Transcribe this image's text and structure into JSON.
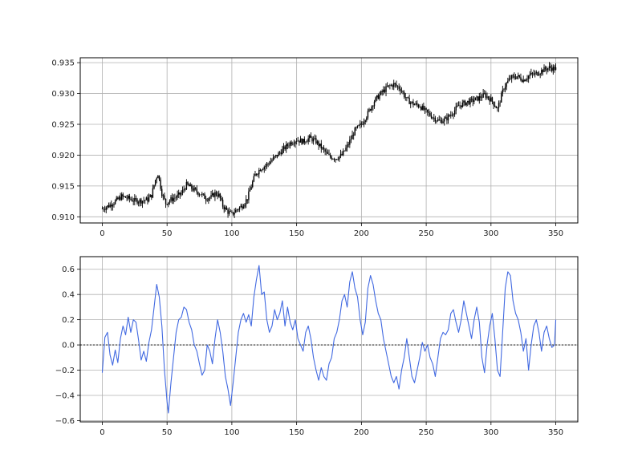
{
  "chart_data": [
    {
      "type": "candlestick",
      "title": "",
      "xlabel": "",
      "ylabel": "",
      "xlim": [
        -17,
        367
      ],
      "ylim": [
        0.909,
        0.9358
      ],
      "xticks": [
        0,
        50,
        100,
        150,
        200,
        250,
        300,
        350
      ],
      "yticks": [
        0.91,
        0.915,
        0.92,
        0.925,
        0.93,
        0.935
      ],
      "ytick_labels": [
        "0.910",
        "0.915",
        "0.920",
        "0.925",
        "0.930",
        "0.935"
      ],
      "grid": true,
      "color": "#000000",
      "close_anchors": [
        [
          0,
          0.9113
        ],
        [
          5,
          0.9118
        ],
        [
          10,
          0.9125
        ],
        [
          15,
          0.9133
        ],
        [
          20,
          0.913
        ],
        [
          25,
          0.9126
        ],
        [
          30,
          0.9126
        ],
        [
          35,
          0.9128
        ],
        [
          38,
          0.9135
        ],
        [
          41,
          0.916
        ],
        [
          43,
          0.917
        ],
        [
          46,
          0.9138
        ],
        [
          49,
          0.9122
        ],
        [
          53,
          0.9128
        ],
        [
          57,
          0.9132
        ],
        [
          61,
          0.9138
        ],
        [
          65,
          0.9152
        ],
        [
          68,
          0.9148
        ],
        [
          72,
          0.9142
        ],
        [
          76,
          0.9137
        ],
        [
          80,
          0.913
        ],
        [
          84,
          0.9132
        ],
        [
          87,
          0.9138
        ],
        [
          90,
          0.9135
        ],
        [
          93,
          0.9118
        ],
        [
          97,
          0.9108
        ],
        [
          100,
          0.9104
        ],
        [
          104,
          0.9112
        ],
        [
          108,
          0.9118
        ],
        [
          112,
          0.913
        ],
        [
          115,
          0.915
        ],
        [
          118,
          0.9168
        ],
        [
          122,
          0.9178
        ],
        [
          126,
          0.9183
        ],
        [
          130,
          0.919
        ],
        [
          135,
          0.92
        ],
        [
          140,
          0.921
        ],
        [
          145,
          0.922
        ],
        [
          150,
          0.9225
        ],
        [
          155,
          0.9222
        ],
        [
          160,
          0.9228
        ],
        [
          165,
          0.9222
        ],
        [
          170,
          0.921
        ],
        [
          175,
          0.9198
        ],
        [
          180,
          0.9195
        ],
        [
          185,
          0.92
        ],
        [
          190,
          0.9218
        ],
        [
          195,
          0.924
        ],
        [
          200,
          0.925
        ],
        [
          205,
          0.9268
        ],
        [
          210,
          0.9288
        ],
        [
          215,
          0.93
        ],
        [
          220,
          0.931
        ],
        [
          225,
          0.9315
        ],
        [
          230,
          0.9308
        ],
        [
          235,
          0.929
        ],
        [
          240,
          0.9283
        ],
        [
          245,
          0.928
        ],
        [
          250,
          0.927
        ],
        [
          255,
          0.9262
        ],
        [
          260,
          0.9255
        ],
        [
          265,
          0.9258
        ],
        [
          270,
          0.9268
        ],
        [
          275,
          0.928
        ],
        [
          280,
          0.9285
        ],
        [
          285,
          0.9288
        ],
        [
          290,
          0.9292
        ],
        [
          295,
          0.9298
        ],
        [
          300,
          0.929
        ],
        [
          305,
          0.9275
        ],
        [
          310,
          0.931
        ],
        [
          315,
          0.9325
        ],
        [
          320,
          0.9328
        ],
        [
          325,
          0.9322
        ],
        [
          330,
          0.933
        ],
        [
          335,
          0.9332
        ],
        [
          340,
          0.9338
        ],
        [
          345,
          0.9342
        ],
        [
          350,
          0.934
        ]
      ]
    },
    {
      "type": "line",
      "title": "",
      "xlabel": "",
      "ylabel": "",
      "xlim": [
        -17,
        367
      ],
      "ylim": [
        -0.61,
        0.7
      ],
      "xticks": [
        0,
        50,
        100,
        150,
        200,
        250,
        300,
        350
      ],
      "yticks": [
        -0.6,
        -0.4,
        -0.2,
        0.0,
        0.2,
        0.4,
        0.6
      ],
      "ytick_labels": [
        "−0.6",
        "−0.4",
        "−0.2",
        "0.0",
        "0.2",
        "0.4",
        "0.6"
      ],
      "grid": true,
      "color": "#4169e1",
      "reference_line": {
        "y": 0.0,
        "color": "#000000",
        "style": "dotted"
      },
      "points": [
        [
          0,
          -0.22
        ],
        [
          2,
          0.06
        ],
        [
          4,
          0.1
        ],
        [
          6,
          -0.08
        ],
        [
          8,
          -0.16
        ],
        [
          10,
          -0.04
        ],
        [
          12,
          -0.14
        ],
        [
          14,
          0.05
        ],
        [
          16,
          0.15
        ],
        [
          18,
          0.08
        ],
        [
          20,
          0.22
        ],
        [
          22,
          0.1
        ],
        [
          24,
          0.2
        ],
        [
          26,
          0.18
        ],
        [
          28,
          0.04
        ],
        [
          30,
          -0.12
        ],
        [
          32,
          -0.05
        ],
        [
          34,
          -0.13
        ],
        [
          36,
          0.02
        ],
        [
          38,
          0.12
        ],
        [
          40,
          0.3
        ],
        [
          42,
          0.48
        ],
        [
          44,
          0.38
        ],
        [
          46,
          0.15
        ],
        [
          48,
          -0.2
        ],
        [
          50,
          -0.45
        ],
        [
          51,
          -0.54
        ],
        [
          53,
          -0.3
        ],
        [
          55,
          -0.1
        ],
        [
          57,
          0.1
        ],
        [
          59,
          0.2
        ],
        [
          61,
          0.22
        ],
        [
          63,
          0.3
        ],
        [
          65,
          0.28
        ],
        [
          67,
          0.18
        ],
        [
          69,
          0.12
        ],
        [
          71,
          0.0
        ],
        [
          73,
          -0.05
        ],
        [
          75,
          -0.15
        ],
        [
          77,
          -0.24
        ],
        [
          79,
          -0.2
        ],
        [
          81,
          0.0
        ],
        [
          83,
          -0.05
        ],
        [
          85,
          -0.15
        ],
        [
          87,
          0.05
        ],
        [
          89,
          0.2
        ],
        [
          91,
          0.1
        ],
        [
          93,
          -0.05
        ],
        [
          95,
          -0.25
        ],
        [
          97,
          -0.35
        ],
        [
          99,
          -0.48
        ],
        [
          101,
          -0.3
        ],
        [
          103,
          -0.1
        ],
        [
          105,
          0.1
        ],
        [
          107,
          0.2
        ],
        [
          109,
          0.25
        ],
        [
          111,
          0.18
        ],
        [
          113,
          0.24
        ],
        [
          115,
          0.15
        ],
        [
          117,
          0.38
        ],
        [
          119,
          0.52
        ],
        [
          121,
          0.63
        ],
        [
          123,
          0.4
        ],
        [
          125,
          0.42
        ],
        [
          127,
          0.2
        ],
        [
          129,
          0.1
        ],
        [
          131,
          0.15
        ],
        [
          133,
          0.28
        ],
        [
          135,
          0.2
        ],
        [
          137,
          0.25
        ],
        [
          139,
          0.35
        ],
        [
          141,
          0.15
        ],
        [
          143,
          0.3
        ],
        [
          145,
          0.18
        ],
        [
          147,
          0.12
        ],
        [
          149,
          0.2
        ],
        [
          151,
          0.05
        ],
        [
          153,
          0.0
        ],
        [
          155,
          -0.05
        ],
        [
          157,
          0.1
        ],
        [
          159,
          0.15
        ],
        [
          161,
          0.05
        ],
        [
          163,
          -0.1
        ],
        [
          165,
          -0.2
        ],
        [
          167,
          -0.28
        ],
        [
          169,
          -0.18
        ],
        [
          171,
          -0.25
        ],
        [
          173,
          -0.28
        ],
        [
          175,
          -0.15
        ],
        [
          177,
          -0.1
        ],
        [
          179,
          0.05
        ],
        [
          181,
          0.1
        ],
        [
          183,
          0.2
        ],
        [
          185,
          0.35
        ],
        [
          187,
          0.4
        ],
        [
          189,
          0.3
        ],
        [
          191,
          0.5
        ],
        [
          193,
          0.58
        ],
        [
          195,
          0.45
        ],
        [
          197,
          0.38
        ],
        [
          199,
          0.2
        ],
        [
          201,
          0.08
        ],
        [
          203,
          0.18
        ],
        [
          205,
          0.45
        ],
        [
          207,
          0.55
        ],
        [
          209,
          0.48
        ],
        [
          211,
          0.35
        ],
        [
          213,
          0.25
        ],
        [
          215,
          0.2
        ],
        [
          217,
          0.05
        ],
        [
          219,
          -0.05
        ],
        [
          221,
          -0.15
        ],
        [
          223,
          -0.25
        ],
        [
          225,
          -0.3
        ],
        [
          227,
          -0.25
        ],
        [
          229,
          -0.35
        ],
        [
          231,
          -0.2
        ],
        [
          233,
          -0.1
        ],
        [
          235,
          0.05
        ],
        [
          237,
          -0.1
        ],
        [
          239,
          -0.25
        ],
        [
          241,
          -0.3
        ],
        [
          243,
          -0.2
        ],
        [
          245,
          -0.1
        ],
        [
          247,
          0.02
        ],
        [
          249,
          -0.05
        ],
        [
          251,
          0.0
        ],
        [
          253,
          -0.1
        ],
        [
          255,
          -0.15
        ],
        [
          257,
          -0.25
        ],
        [
          259,
          -0.1
        ],
        [
          261,
          0.05
        ],
        [
          263,
          0.1
        ],
        [
          265,
          0.08
        ],
        [
          267,
          0.12
        ],
        [
          269,
          0.25
        ],
        [
          271,
          0.28
        ],
        [
          273,
          0.18
        ],
        [
          275,
          0.1
        ],
        [
          277,
          0.2
        ],
        [
          279,
          0.35
        ],
        [
          281,
          0.25
        ],
        [
          283,
          0.15
        ],
        [
          285,
          0.05
        ],
        [
          287,
          0.2
        ],
        [
          289,
          0.3
        ],
        [
          291,
          0.18
        ],
        [
          293,
          -0.1
        ],
        [
          295,
          -0.22
        ],
        [
          297,
          0.0
        ],
        [
          299,
          0.15
        ],
        [
          301,
          0.25
        ],
        [
          303,
          0.05
        ],
        [
          305,
          -0.2
        ],
        [
          307,
          -0.25
        ],
        [
          309,
          0.1
        ],
        [
          311,
          0.45
        ],
        [
          313,
          0.58
        ],
        [
          315,
          0.55
        ],
        [
          317,
          0.35
        ],
        [
          319,
          0.25
        ],
        [
          321,
          0.2
        ],
        [
          323,
          0.1
        ],
        [
          325,
          -0.05
        ],
        [
          327,
          0.05
        ],
        [
          329,
          -0.2
        ],
        [
          331,
          0.0
        ],
        [
          333,
          0.15
        ],
        [
          335,
          0.2
        ],
        [
          337,
          0.1
        ],
        [
          339,
          -0.05
        ],
        [
          341,
          0.1
        ],
        [
          343,
          0.15
        ],
        [
          345,
          0.05
        ],
        [
          347,
          -0.02
        ],
        [
          349,
          0.0
        ],
        [
          350,
          0.2
        ]
      ]
    }
  ]
}
